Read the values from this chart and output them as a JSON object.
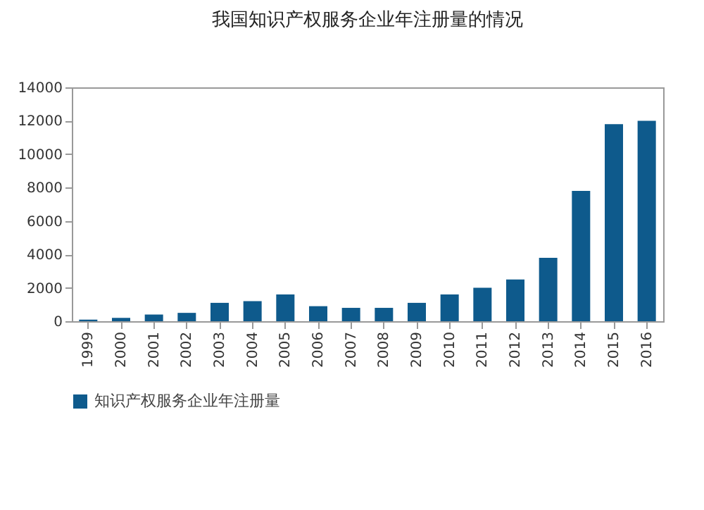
{
  "chart_data": {
    "type": "bar",
    "title": "我国知识产权服务企业年注册量的情况",
    "categories": [
      "1999",
      "2000",
      "2001",
      "2002",
      "2003",
      "2004",
      "2005",
      "2006",
      "2007",
      "2008",
      "2009",
      "2010",
      "2011",
      "2012",
      "2013",
      "2014",
      "2015",
      "2016"
    ],
    "series": [
      {
        "name": "知识产权服务企业年注册量",
        "color": "#0e5a8c",
        "values": [
          100,
          200,
          400,
          500,
          1100,
          1200,
          1600,
          900,
          800,
          800,
          1100,
          1600,
          2000,
          2500,
          3800,
          7800,
          11800,
          12000
        ]
      }
    ],
    "ylim": [
      0,
      14000
    ],
    "yticks": [
      0,
      2000,
      4000,
      6000,
      8000,
      10000,
      12000,
      14000
    ],
    "grid": false,
    "legend": "bottom"
  }
}
